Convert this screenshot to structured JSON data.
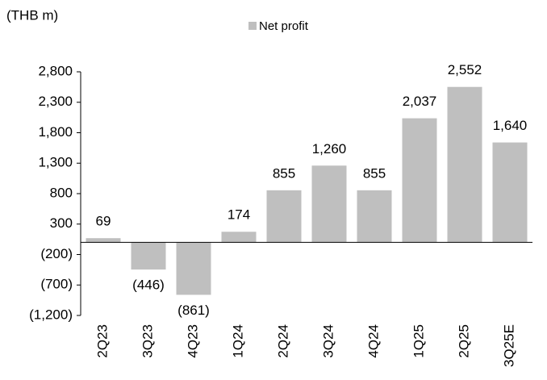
{
  "chart_data": {
    "type": "bar",
    "y_axis_label": "(THB m)",
    "categories": [
      "2Q23",
      "3Q23",
      "4Q23",
      "1Q24",
      "2Q24",
      "3Q24",
      "4Q24",
      "1Q25",
      "2Q25",
      "3Q25E"
    ],
    "series": [
      {
        "name": "Net profit",
        "color": "#bfbfbf",
        "values": [
          69,
          -446,
          -861,
          174,
          855,
          1260,
          855,
          2037,
          2552,
          1640
        ],
        "value_labels": [
          "69",
          "(446)",
          "(861)",
          "174",
          "855",
          "1,260",
          "855",
          "2,037",
          "2,552",
          "1,640"
        ]
      }
    ],
    "ylim": [
      -1200,
      2800
    ],
    "yticks": [
      {
        "value": -1200,
        "label": "(1,200)"
      },
      {
        "value": -700,
        "label": "(700)"
      },
      {
        "value": -200,
        "label": "(200)"
      },
      300,
      800,
      {
        "value": 1300,
        "label": "1,300"
      },
      {
        "value": 1800,
        "label": "1,800"
      },
      {
        "value": 2300,
        "label": "2,300"
      },
      {
        "value": 2800,
        "label": "2,800"
      }
    ],
    "legend": "top"
  }
}
